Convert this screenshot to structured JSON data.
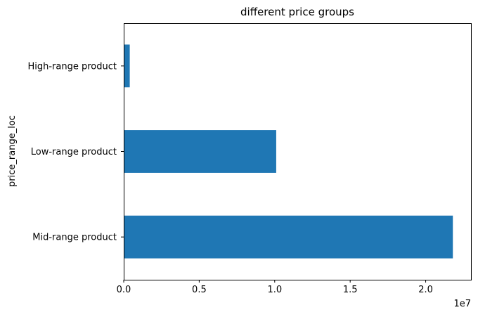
{
  "chart_data": {
    "type": "bar",
    "orientation": "horizontal",
    "title": "different price groups",
    "xlabel": "",
    "ylabel": "price_range_loc",
    "x_offset_label": "1e7",
    "xlim": [
      0,
      23000000
    ],
    "x_ticks": [
      {
        "value": 0,
        "label": "0.0"
      },
      {
        "value": 5000000,
        "label": "0.5"
      },
      {
        "value": 10000000,
        "label": "1.0"
      },
      {
        "value": 15000000,
        "label": "1.5"
      },
      {
        "value": 20000000,
        "label": "2.0"
      }
    ],
    "categories": [
      "Mid-range product",
      "Low-range product",
      "High-range product"
    ],
    "values": [
      21800000,
      10100000,
      400000
    ],
    "bar_color": "#1f77b4",
    "grid": false,
    "legend": "none"
  }
}
